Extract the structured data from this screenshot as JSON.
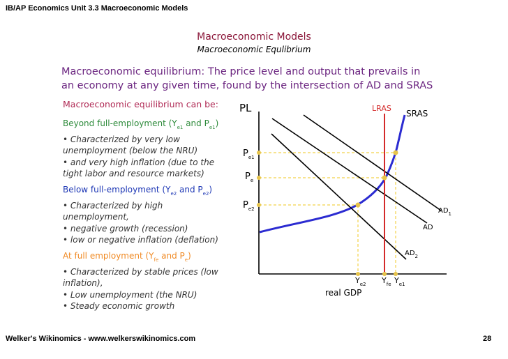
{
  "header": {
    "course_title": "IB/AP Economics Unit 3.3 Macroeconomic Models"
  },
  "slide": {
    "title": "Macroeconomic Models",
    "subtitle": "Macroeconomic Equlibrium",
    "definition_line1": "Macroeconomic equilibrium: The price level and output that prevails in",
    "definition_line2": "an economy at any given time, found by the intersection of AD and SRAS",
    "lead": "Macroeconomic equilibrium can be:"
  },
  "sections": {
    "beyond": {
      "heading_pre": "Beyond full-employment (Y",
      "sub1": "e1",
      "heading_mid": " and P",
      "sub2": "e1",
      "heading_post": ")",
      "b1a": "• Characterized by very low",
      "b1b": "unemployment (below the NRU)",
      "b2a": "• and very high inflation (due to the",
      "b2b": "tight labor and resource markets)"
    },
    "below": {
      "heading_pre": "Below full-employment (Y",
      "sub1": "e2",
      "heading_mid": " and P",
      "sub2": "e2",
      "heading_post": ")",
      "b1a": "• Characterized by high",
      "b1b": "unemployment,",
      "b2": "• negative growth (recession)",
      "b3": "• low or negative inflation (deflation)"
    },
    "full": {
      "heading_pre": "At full employment (Y",
      "sub1": "fe",
      "heading_mid": " and P",
      "sub2": "e",
      "heading_post": ")",
      "b1a": "• Characterized by stable prices (low",
      "b1b": "inflation),",
      "b2": "• Low unemployment (the NRU)",
      "b3": "• Steady economic growth"
    }
  },
  "graph": {
    "y_axis_label": "PL",
    "x_axis_label": "real GDP",
    "lras_label": "LRAS",
    "sras_label": "SRAS",
    "ad1_label": "AD",
    "ad1_sub": "1",
    "ad_label": "AD",
    "ad2_label": "AD",
    "ad2_sub": "2",
    "pe1": "P",
    "pe1_sub": "e1",
    "pe": "P",
    "pe_sub": "e",
    "pe2": "P",
    "pe2_sub": "e2",
    "ye2": "Y",
    "ye2_sub": "e2",
    "yfe": "Y",
    "yfe_sub": "fe",
    "ye1": "Y",
    "ye1_sub": "e1",
    "colors": {
      "curve": "#2b2bd1",
      "lras": "#d42a2a",
      "dashed": "#f2d24a",
      "dot": "#e7c44a",
      "ad": "#000000"
    }
  },
  "footer": {
    "site": "Welker's Wikinomics - www.welkerswikinomics.com",
    "page": "28"
  }
}
